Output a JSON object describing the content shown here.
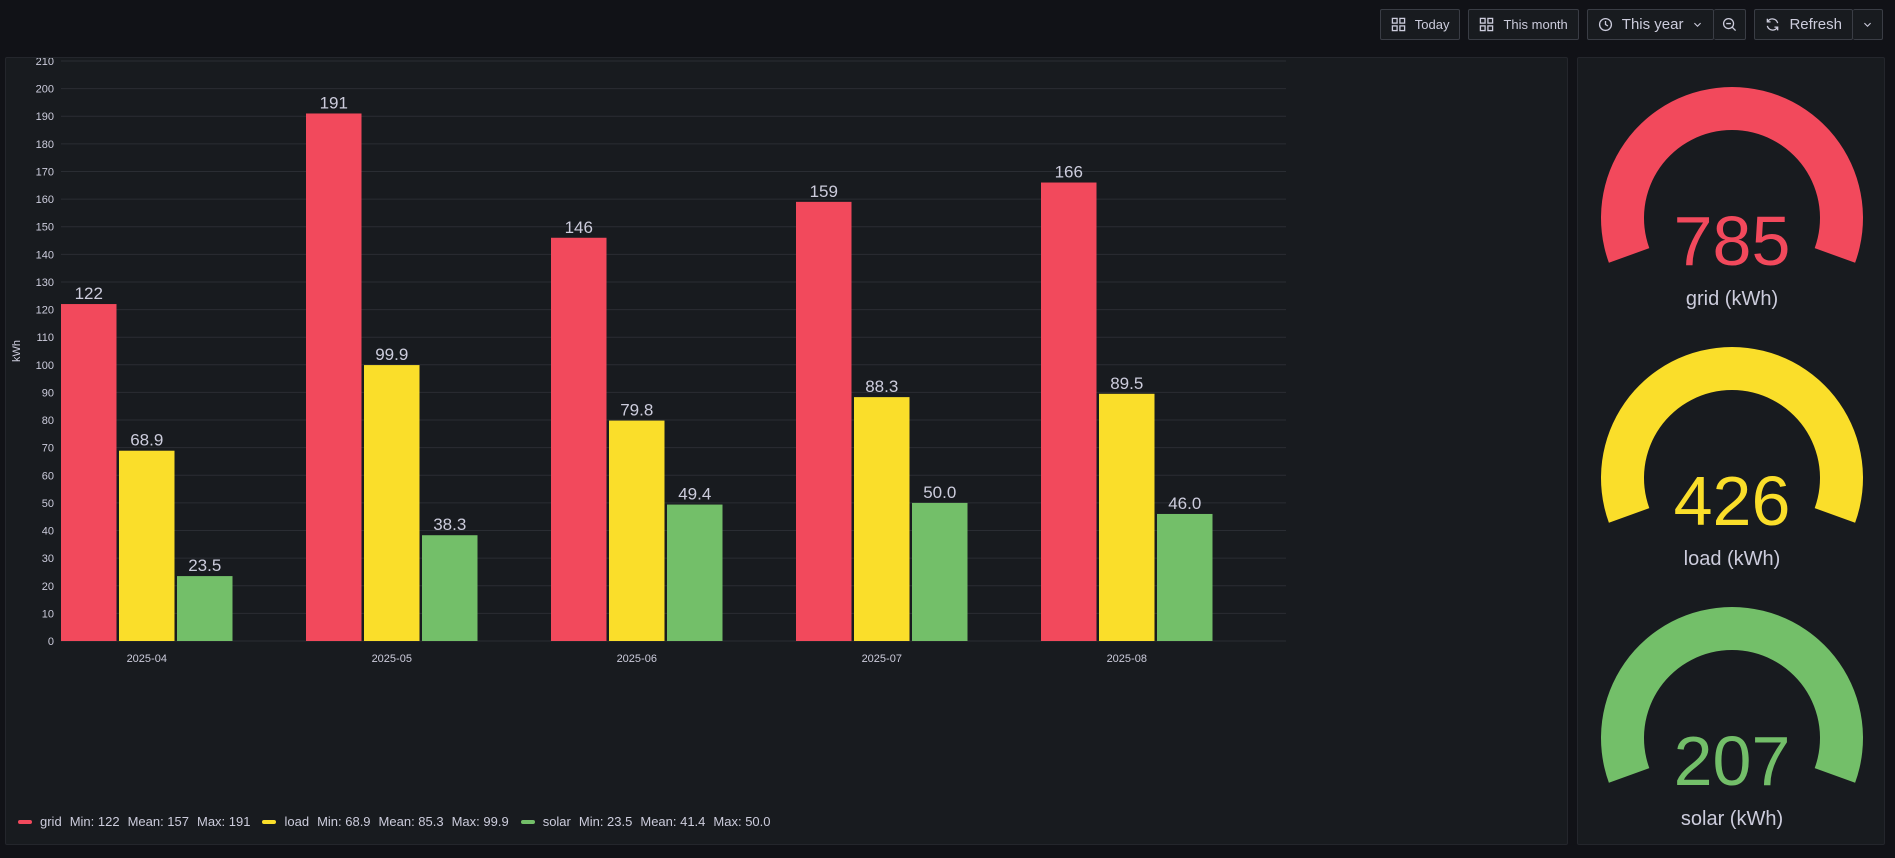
{
  "toolbar": {
    "today_label": "Today",
    "this_month_label": "This month",
    "time_range_label": "This year",
    "refresh_label": "Refresh"
  },
  "colors": {
    "grid": "#f2495c",
    "load": "#fade2a",
    "solar": "#73bf69"
  },
  "chart_data": {
    "type": "bar",
    "categories": [
      "2025-04",
      "2025-05",
      "2025-06",
      "2025-07",
      "2025-08"
    ],
    "series": [
      {
        "name": "grid",
        "values": [
          122,
          191,
          146,
          159,
          166
        ],
        "labels": [
          "122",
          "191",
          "146",
          "159",
          "166"
        ],
        "color": "#f2495c"
      },
      {
        "name": "load",
        "values": [
          68.9,
          99.9,
          79.8,
          88.3,
          89.5
        ],
        "labels": [
          "68.9",
          "99.9",
          "79.8",
          "88.3",
          "89.5"
        ],
        "color": "#fade2a"
      },
      {
        "name": "solar",
        "values": [
          23.5,
          38.3,
          49.4,
          50.0,
          46.0
        ],
        "labels": [
          "23.5",
          "38.3",
          "49.4",
          "50.0",
          "46.0"
        ],
        "color": "#73bf69"
      }
    ],
    "ylabel": "kWh",
    "ylim": [
      0,
      210
    ],
    "yticks": [
      "0",
      "10",
      "20",
      "30",
      "40",
      "50",
      "60",
      "70",
      "80",
      "90",
      "100",
      "110",
      "120",
      "130",
      "140",
      "150",
      "160",
      "170",
      "180",
      "190",
      "200",
      "210"
    ],
    "grid": true,
    "legend_placement": "bottom-left"
  },
  "legend": [
    {
      "name": "grid",
      "min_text": "Min: 122",
      "mean_text": "Mean: 157",
      "max_text": "Max: 191",
      "color": "#f2495c"
    },
    {
      "name": "load",
      "min_text": "Min: 68.9",
      "mean_text": "Mean: 85.3",
      "max_text": "Max: 99.9",
      "color": "#fade2a"
    },
    {
      "name": "solar",
      "min_text": "Min: 23.5",
      "mean_text": "Mean: 41.4",
      "max_text": "Max: 50.0",
      "color": "#73bf69"
    }
  ],
  "stats": [
    {
      "value": "785",
      "label": "grid (kWh)",
      "color": "#f2495c"
    },
    {
      "value": "426",
      "label": "load (kWh)",
      "color": "#fade2a"
    },
    {
      "value": "207",
      "label": "solar (kWh)",
      "color": "#73bf69"
    }
  ]
}
